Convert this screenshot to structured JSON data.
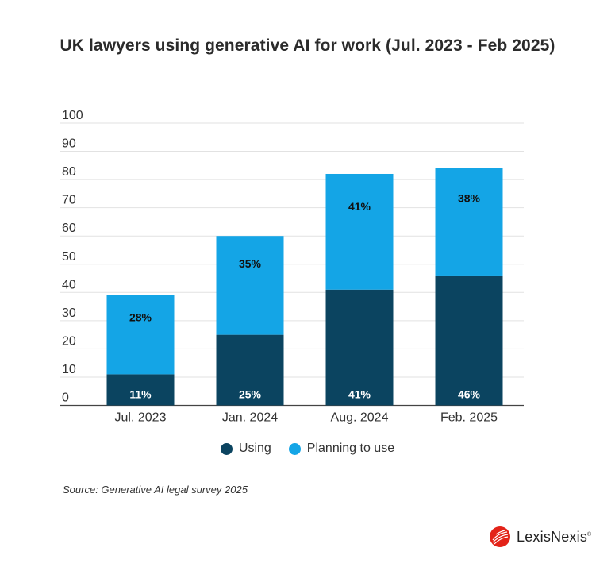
{
  "chart_data": {
    "type": "bar",
    "stacked": true,
    "title": "UK lawyers using generative AI for work (Jul. 2023 - Feb 2025)",
    "categories": [
      "Jul. 2023",
      "Jan. 2024",
      "Aug. 2024",
      "Feb. 2025"
    ],
    "series": [
      {
        "name": "Using",
        "values": [
          11,
          25,
          41,
          46
        ],
        "labels": [
          "11%",
          "25%",
          "41%",
          "46%"
        ],
        "color": "#0b4460",
        "label_color": "#ffffff"
      },
      {
        "name": "Planning to use",
        "values": [
          28,
          35,
          41,
          38
        ],
        "labels": [
          "28%",
          "35%",
          "41%",
          "38%"
        ],
        "color": "#14a5e6",
        "label_color": "#111111"
      }
    ],
    "yticks": [
      "0",
      "10",
      "20",
      "30",
      "40",
      "50",
      "60",
      "70",
      "80",
      "90",
      "100"
    ],
    "ylim": [
      0,
      100
    ],
    "grid": true,
    "xlabel": "",
    "ylabel": "",
    "legend_position": "bottom-center"
  },
  "source": "Source: Generative AI legal survey 2025",
  "brand": {
    "name": "LexisNexis",
    "mark": "®"
  },
  "colors": {
    "using": "#0b4460",
    "planning": "#14a5e6",
    "brand_red": "#e32319"
  }
}
